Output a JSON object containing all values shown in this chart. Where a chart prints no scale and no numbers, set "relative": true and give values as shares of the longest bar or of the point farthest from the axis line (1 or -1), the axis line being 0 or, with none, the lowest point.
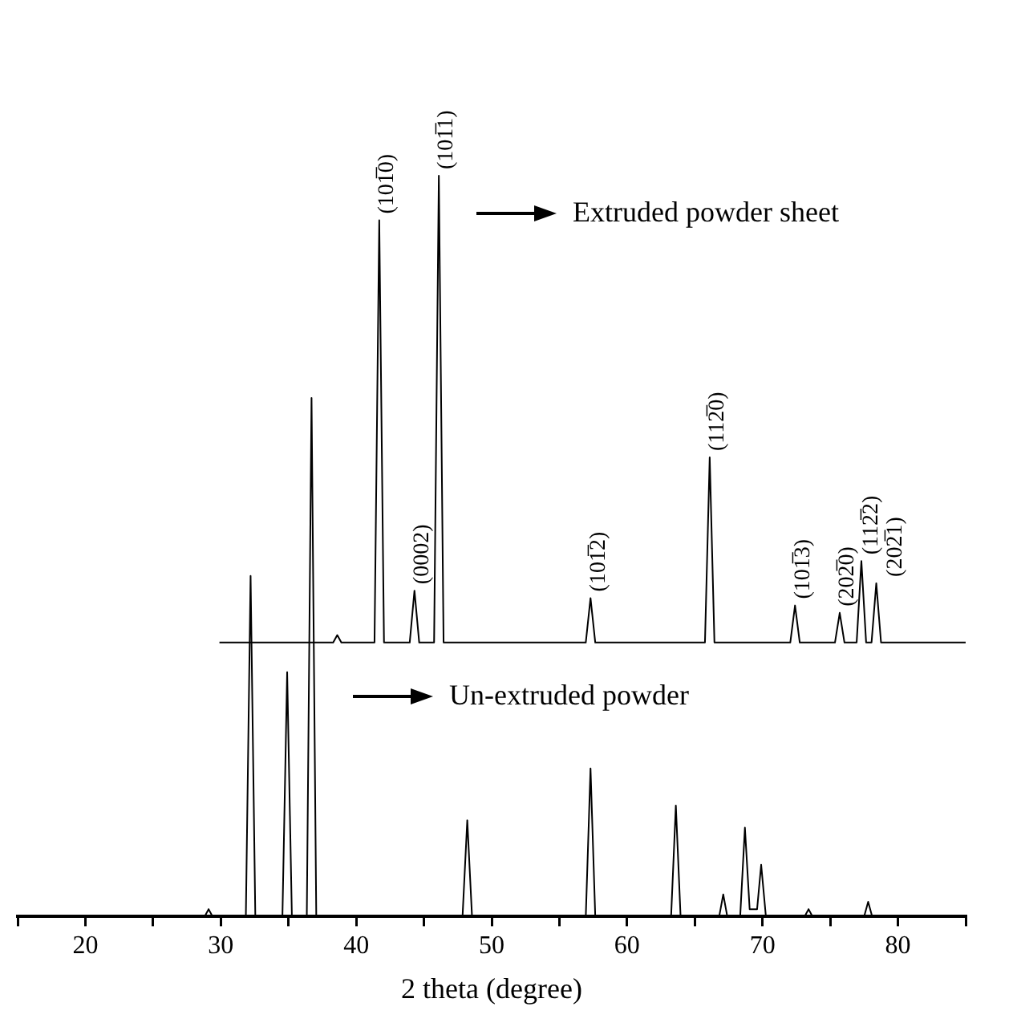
{
  "chart_data": {
    "type": "line",
    "relative": true,
    "xlabel": "2 theta (degree)",
    "xlim": [
      15,
      85
    ],
    "xticks": [
      {
        "value": 15,
        "label": null
      },
      20,
      {
        "value": 25,
        "label": null
      },
      30,
      {
        "value": 35,
        "label": null
      },
      40,
      {
        "value": 45,
        "label": null
      },
      50,
      {
        "value": 55,
        "label": null
      },
      60,
      {
        "value": 65,
        "label": null
      },
      70,
      {
        "value": 75,
        "label": null
      },
      80,
      {
        "value": 85,
        "label": null
      }
    ],
    "tick_labels": "x",
    "grid": false,
    "legend": "top right",
    "marker": "none",
    "line_style": "solid",
    "series": [
      {
        "name": "Extruded powder sheet",
        "color": "#000000",
        "x": [
          29.9,
          38.3,
          38.6,
          38.9,
          41.35,
          41.7,
          42.05,
          43.95,
          44.3,
          44.65,
          45.75,
          46.1,
          46.45,
          56.95,
          57.3,
          57.65,
          65.75,
          66.1,
          66.45,
          72.05,
          72.4,
          72.75,
          75.35,
          75.7,
          76.05,
          76.95,
          77.3,
          77.65,
          78.05,
          78.4,
          78.75,
          85
        ],
        "values": [
          0.37,
          0.37,
          0.38,
          0.37,
          0.37,
          0.94,
          0.37,
          0.37,
          0.44,
          0.37,
          0.37,
          1,
          0.37,
          0.37,
          0.43,
          0.37,
          0.37,
          0.62,
          0.37,
          0.37,
          0.42,
          0.37,
          0.37,
          0.41,
          0.37,
          0.37,
          0.48,
          0.37,
          0.37,
          0.45,
          0.37,
          0.37
        ]
      },
      {
        "name": "Un-extruded powder",
        "color": "#000000",
        "x": [
          20,
          28.8,
          29.1,
          29.4,
          31.85,
          32.2,
          32.55,
          34.55,
          34.9,
          35.25,
          36.35,
          36.7,
          37.05,
          47.85,
          48.2,
          48.55,
          56.95,
          57.3,
          57.65,
          63.25,
          63.6,
          63.95,
          66.8,
          67.1,
          67.4,
          68.35,
          68.7,
          69.05,
          69.6,
          69.9,
          70.25,
          73.1,
          73.4,
          73.7,
          77.5,
          77.8,
          78.1,
          80.5
        ],
        "values": [
          0,
          0,
          0.01,
          0,
          0,
          0.46,
          0,
          0,
          0.33,
          0,
          0,
          0.7,
          0,
          0,
          0.13,
          0,
          0,
          0.2,
          0,
          0,
          0.15,
          0,
          0,
          0.03,
          0,
          0,
          0.12,
          0.01,
          0.01,
          0.07,
          0,
          0,
          0.01,
          0,
          0,
          0.02,
          0,
          0
        ]
      }
    ],
    "annotations": [
      {
        "text": "(101̅0)",
        "x": 41.7,
        "y": 0.94
      },
      {
        "text": "(0002)",
        "x": 44.3,
        "y": 0.44
      },
      {
        "text": "(101̅1)",
        "x": 46.1,
        "y": 1
      },
      {
        "text": "(101̅2)",
        "x": 57.3,
        "y": 0.43
      },
      {
        "text": "(112̅0)",
        "x": 66.1,
        "y": 0.62
      },
      {
        "text": "(101̅3)",
        "x": 72.4,
        "y": 0.42
      },
      {
        "text": "(202̅0)",
        "x": 75.7,
        "y": 0.41
      },
      {
        "text": "(112̅2)",
        "x": 77.3,
        "y": 0.48
      },
      {
        "text": "(202̅1)",
        "x": 78.4,
        "y": 0.45
      }
    ]
  }
}
